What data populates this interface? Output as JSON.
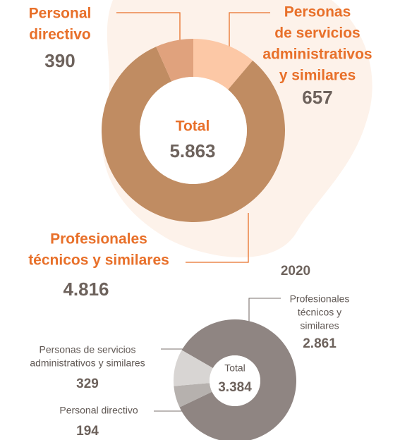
{
  "chart_data": [
    {
      "type": "donut",
      "center_label": "Total",
      "total": {
        "value": 5863,
        "label": "5.863"
      },
      "categories": [
        [
          "Personas",
          "de servicios",
          "administrativos",
          "y similares"
        ],
        [
          "Profesionales",
          "técnicos y similares"
        ],
        [
          "Personal",
          "directivo"
        ]
      ],
      "values": [
        657,
        4816,
        390
      ],
      "value_labels": [
        "657",
        "4.816",
        "390"
      ],
      "colors": [
        "#fcc8a6",
        "#c08c62",
        "#e0a27d"
      ]
    },
    {
      "type": "donut",
      "title": "2020",
      "center_label": "Total",
      "total": {
        "value": 3384,
        "label": "3.384"
      },
      "categories": [
        [
          "Profesionales",
          "técnicos y",
          "similares"
        ],
        [
          "Personal directivo"
        ],
        [
          "Personas de servicios",
          "administrativos y similares"
        ]
      ],
      "values": [
        2861,
        194,
        329
      ],
      "value_labels": [
        "2.861",
        "194",
        "329"
      ],
      "colors": [
        "#8f8582",
        "#b6b1ae",
        "#d8d5d3"
      ]
    }
  ]
}
